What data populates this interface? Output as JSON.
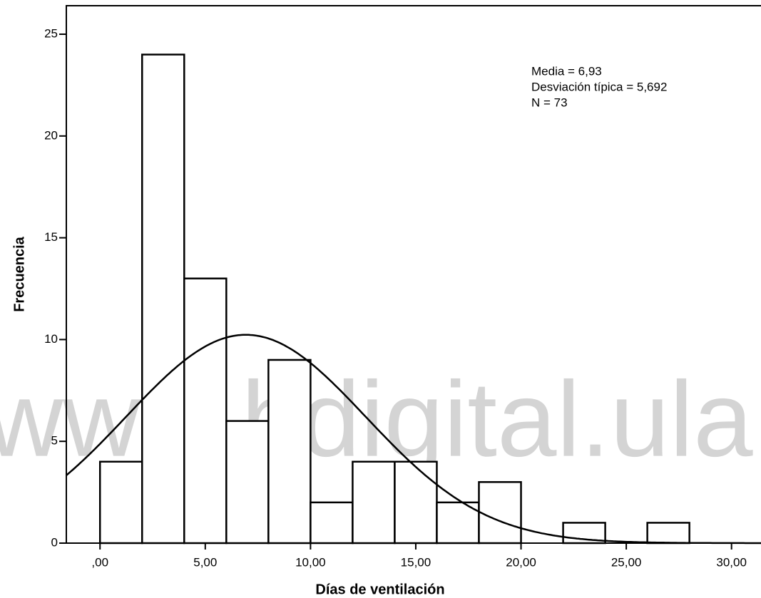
{
  "chart_data": {
    "type": "histogram",
    "xlabel": "Días de ventilación",
    "ylabel": "Frecuencia",
    "bins": [
      0,
      2,
      4,
      6,
      8,
      10,
      12,
      14,
      16,
      18,
      20,
      22,
      24,
      26,
      28
    ],
    "values": [
      4,
      24,
      13,
      6,
      9,
      2,
      4,
      4,
      2,
      3,
      0,
      1,
      0,
      1
    ],
    "color": "#ffffff",
    "edgecolor": "#000000",
    "xlim": [
      -1.6,
      31.4
    ],
    "ylim": [
      0,
      26.4
    ],
    "xticks": [
      {
        "value": 0,
        "label": ",00"
      },
      {
        "value": 5,
        "label": "5,00"
      },
      {
        "value": 10,
        "label": "10,00"
      },
      {
        "value": 15,
        "label": "15,00"
      },
      {
        "value": 20,
        "label": "20,00"
      },
      {
        "value": 25,
        "label": "25,00"
      },
      {
        "value": 30,
        "label": "30,00"
      }
    ],
    "yticks": [
      0,
      5,
      10,
      15,
      20,
      25
    ],
    "annotations": [
      {
        "value": 6.93,
        "label": "Media = 6,93"
      },
      {
        "value": 5.692,
        "label": "Desviación típica = 5,692"
      },
      {
        "value": 73,
        "label": "N = 73"
      }
    ],
    "watermark": "www.bdigital.ula.v"
  }
}
